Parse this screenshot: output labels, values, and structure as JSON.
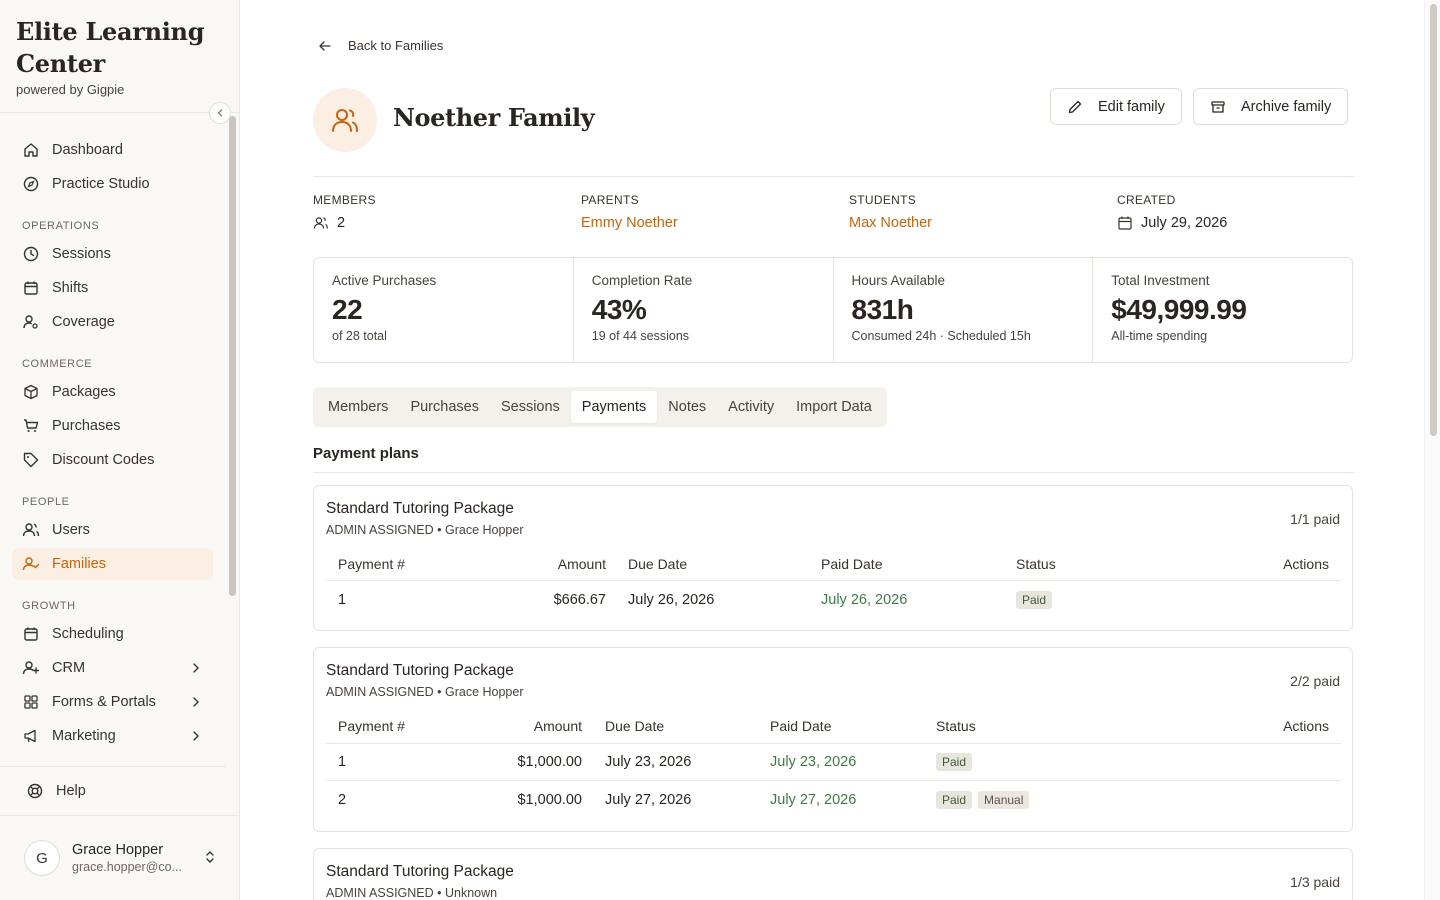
{
  "brand": {
    "title": "Elite Learning Center",
    "subtitle": "powered by Gigpie"
  },
  "sidebar": {
    "top_items": [
      {
        "label": "Dashboard",
        "icon": "home-icon"
      },
      {
        "label": "Practice Studio",
        "icon": "compass-icon"
      }
    ],
    "sections": [
      {
        "title": "OPERATIONS",
        "items": [
          {
            "label": "Sessions",
            "icon": "clock-icon"
          },
          {
            "label": "Shifts",
            "icon": "calendar-icon"
          },
          {
            "label": "Coverage",
            "icon": "user-gear-icon"
          }
        ]
      },
      {
        "title": "COMMERCE",
        "items": [
          {
            "label": "Packages",
            "icon": "package-icon"
          },
          {
            "label": "Purchases",
            "icon": "cart-icon"
          },
          {
            "label": "Discount Codes",
            "icon": "tag-icon"
          }
        ]
      },
      {
        "title": "PEOPLE",
        "items": [
          {
            "label": "Users",
            "icon": "users-icon"
          },
          {
            "label": "Families",
            "icon": "user-check-icon",
            "active": true
          }
        ]
      },
      {
        "title": "GROWTH",
        "items": [
          {
            "label": "Scheduling",
            "icon": "calendar-icon"
          },
          {
            "label": "CRM",
            "icon": "user-plus-icon",
            "expandable": true
          },
          {
            "label": "Forms & Portals",
            "icon": "grid-icon",
            "expandable": true
          },
          {
            "label": "Marketing",
            "icon": "megaphone-icon",
            "expandable": true
          }
        ]
      }
    ],
    "help_label": "Help",
    "user": {
      "initial": "G",
      "name": "Grace Hopper",
      "email": "grace.hopper@co..."
    }
  },
  "header": {
    "back_label": "Back to Families",
    "family_name": "Noether Family",
    "edit_label": "Edit family",
    "archive_label": "Archive family"
  },
  "meta": {
    "members_label": "MEMBERS",
    "members_value": "2",
    "parents_label": "PARENTS",
    "parents_value": "Emmy Noether",
    "students_label": "STUDENTS",
    "students_value": "Max Noether",
    "created_label": "CREATED",
    "created_value": "July 29, 2026"
  },
  "stats": [
    {
      "label": "Active Purchases",
      "value": "22",
      "sub": "of 28 total"
    },
    {
      "label": "Completion Rate",
      "value": "43%",
      "sub": "19 of 44 sessions"
    },
    {
      "label": "Hours Available",
      "value": "831h",
      "sub": "Consumed 24h · Scheduled 15h"
    },
    {
      "label": "Total Investment",
      "value": "$49,999.99",
      "sub": "All-time spending"
    }
  ],
  "tabs": [
    {
      "label": "Members"
    },
    {
      "label": "Purchases"
    },
    {
      "label": "Sessions"
    },
    {
      "label": "Payments",
      "active": true
    },
    {
      "label": "Notes"
    },
    {
      "label": "Activity"
    },
    {
      "label": "Import Data"
    }
  ],
  "payments": {
    "section_title": "Payment plans",
    "columns": [
      "Payment #",
      "Amount",
      "Due Date",
      "Paid Date",
      "Status",
      "Actions"
    ],
    "plans": [
      {
        "name": "Standard Tutoring Package",
        "meta": "ADMIN ASSIGNED • Grace Hopper",
        "progress": "1/1 paid",
        "rows": [
          {
            "num": "1",
            "amount": "$666.67",
            "due": "July 26, 2026",
            "paid": "July 26, 2026",
            "status": "Paid",
            "extra": ""
          }
        ]
      },
      {
        "name": "Standard Tutoring Package",
        "meta": "ADMIN ASSIGNED • Grace Hopper",
        "progress": "2/2 paid",
        "rows": [
          {
            "num": "1",
            "amount": "$1,000.00",
            "due": "July 23, 2026",
            "paid": "July 23, 2026",
            "status": "Paid",
            "extra": ""
          },
          {
            "num": "2",
            "amount": "$1,000.00",
            "due": "July 27, 2026",
            "paid": "July 27, 2026",
            "status": "Paid",
            "extra": "Manual"
          }
        ]
      },
      {
        "name": "Standard Tutoring Package",
        "meta": "ADMIN ASSIGNED • Unknown",
        "progress": "1/3 paid",
        "rows": []
      }
    ]
  }
}
